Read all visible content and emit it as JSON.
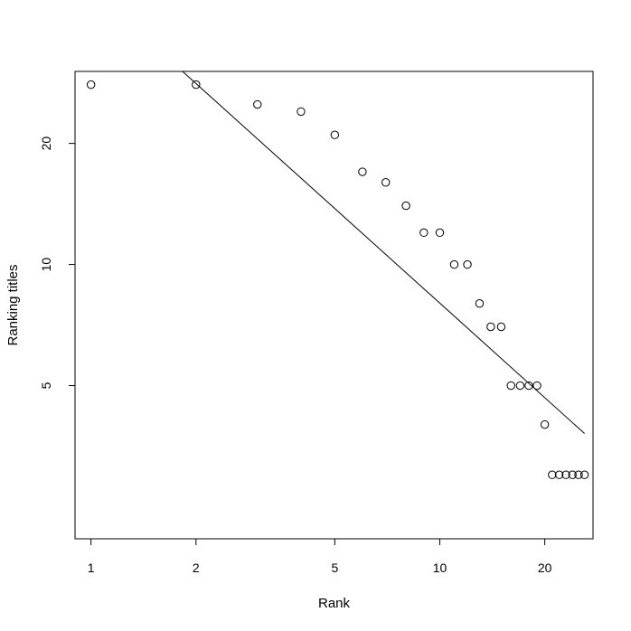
{
  "chart_data": {
    "type": "scatter",
    "xlabel": "Rank",
    "ylabel": "Ranking titles",
    "x_scale": "log",
    "y_scale": "log",
    "xlim": [
      0.9,
      27.5
    ],
    "ylim": [
      2.08,
      30.2
    ],
    "x_ticks": [
      1,
      2,
      5,
      10,
      20
    ],
    "x_tick_labels": [
      "1",
      "2",
      "5",
      "10",
      "20"
    ],
    "y_ticks": [
      5,
      10,
      20
    ],
    "y_tick_labels": [
      "5",
      "10",
      "20"
    ],
    "grid": false,
    "legend": "none",
    "points": [
      {
        "x": 1,
        "y": 28
      },
      {
        "x": 2,
        "y": 28
      },
      {
        "x": 3,
        "y": 25
      },
      {
        "x": 4,
        "y": 24
      },
      {
        "x": 5,
        "y": 21
      },
      {
        "x": 6,
        "y": 17
      },
      {
        "x": 7,
        "y": 16
      },
      {
        "x": 8,
        "y": 14
      },
      {
        "x": 9,
        "y": 12
      },
      {
        "x": 10,
        "y": 12
      },
      {
        "x": 11,
        "y": 10
      },
      {
        "x": 12,
        "y": 10
      },
      {
        "x": 13,
        "y": 8
      },
      {
        "x": 14,
        "y": 7
      },
      {
        "x": 15,
        "y": 7
      },
      {
        "x": 16,
        "y": 5
      },
      {
        "x": 17,
        "y": 5
      },
      {
        "x": 18,
        "y": 5
      },
      {
        "x": 19,
        "y": 5
      },
      {
        "x": 20,
        "y": 4
      },
      {
        "x": 21,
        "y": 3
      },
      {
        "x": 22,
        "y": 3
      },
      {
        "x": 23,
        "y": 3
      },
      {
        "x": 24,
        "y": 3
      },
      {
        "x": 25,
        "y": 3
      },
      {
        "x": 26,
        "y": 3
      }
    ],
    "fit_line": {
      "x": [
        1.83,
        26
      ],
      "y": [
        30.2,
        3.8
      ]
    }
  }
}
